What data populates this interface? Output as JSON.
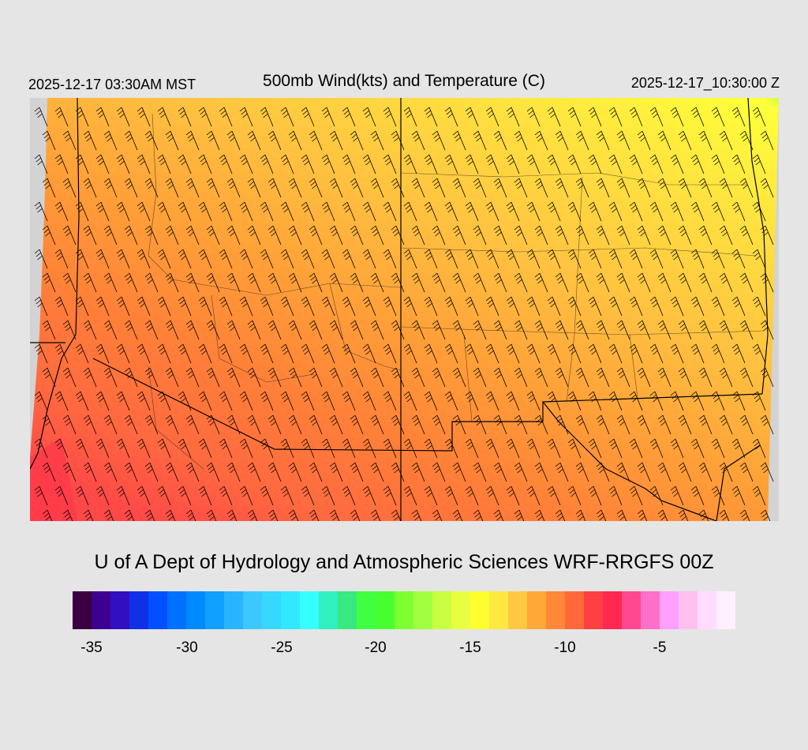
{
  "header": {
    "local_time": "2025-12-17 03:30AM MST",
    "title": "500mb Wind(kts) and Temperature (C)",
    "valid_time": "2025-12-17_10:30:00 Z"
  },
  "credit": "U of A Dept of Hydrology and Atmospheric Sciences WRF-RRGFS 00Z",
  "colorbar": {
    "colors": [
      "#3a0040",
      "#3d0090",
      "#3010c0",
      "#1030e8",
      "#0050ff",
      "#0070ff",
      "#0088ff",
      "#10a0ff",
      "#28b4ff",
      "#3cc8ff",
      "#36d8ff",
      "#30e8ff",
      "#36ffff",
      "#30f0c0",
      "#38e880",
      "#40ff40",
      "#48ff30",
      "#80ff30",
      "#a0ff40",
      "#c8ff40",
      "#e8ff40",
      "#ffff30",
      "#ffe840",
      "#ffc840",
      "#ffa838",
      "#ff8838",
      "#ff6838",
      "#ff4040",
      "#ff2850",
      "#ff4890",
      "#ff70c8",
      "#ffa0ff",
      "#ffc0f0",
      "#ffdcff",
      "#fff0ff"
    ],
    "tick_labels": [
      "-35",
      "-30",
      "-25",
      "-20",
      "-15",
      "-10",
      "-5"
    ]
  },
  "map": {
    "field": "temperature-500mb",
    "gradient_colors": [
      "#ffff3a",
      "#ffe040",
      "#ffc040",
      "#ffa038",
      "#ff8038",
      "#ff6838",
      "#ff4848"
    ],
    "upper_right_color": "#c8ff40",
    "background_color": "#d3d3d3"
  }
}
